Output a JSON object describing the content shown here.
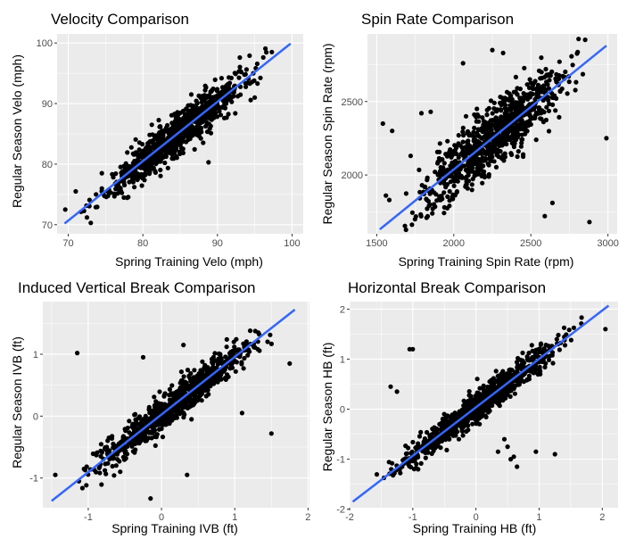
{
  "chart_data": [
    {
      "type": "scatter",
      "title": "Velocity Comparison",
      "xlabel": "Spring Training Velo (mph)",
      "ylabel": "Regular Season Velo (mph)",
      "xlim": [
        68.5,
        101.5
      ],
      "ylim": [
        68.5,
        101.5
      ],
      "xticks": [
        70,
        80,
        90,
        100
      ],
      "yticks": [
        70,
        80,
        90,
        100
      ],
      "fit_line": {
        "x": [
          69.5,
          99.8
        ],
        "y": [
          70.2,
          99.9
        ]
      },
      "cloud": {
        "x_range": [
          69.5,
          99.8
        ],
        "slope": 0.98,
        "intercept": 2.1,
        "spread": 1.6
      },
      "outliers": [
        {
          "x": 69.6,
          "y": 72.5
        },
        {
          "x": 71.0,
          "y": 75.5
        },
        {
          "x": 72.5,
          "y": 71.2
        },
        {
          "x": 81.2,
          "y": 86.5
        },
        {
          "x": 88.8,
          "y": 80.3
        },
        {
          "x": 86.5,
          "y": 91.5
        },
        {
          "x": 74.5,
          "y": 78.5
        },
        {
          "x": 95.0,
          "y": 91.0
        }
      ],
      "colors": {
        "points": "#000000",
        "fit": "#3366ff",
        "panel": "#ebebeb"
      },
      "grid": true,
      "legend": "none"
    },
    {
      "type": "scatter",
      "title": "Spin Rate Comparison",
      "xlabel": "Spring Training Spin Rate (rpm)",
      "ylabel": "Regular Season Spin Rate (rpm)",
      "xlim": [
        1440,
        3060
      ],
      "ylim": [
        1600,
        2960
      ],
      "xticks": [
        1500,
        2000,
        2500,
        3000
      ],
      "yticks": [
        2000,
        2500
      ],
      "fit_line": {
        "x": [
          1520,
          2990
        ],
        "y": [
          1630,
          2880
        ]
      },
      "cloud": {
        "x_range": [
          1520,
          2990
        ],
        "slope": 0.85,
        "intercept": 340,
        "spread": 110
      },
      "outliers": [
        {
          "x": 1540,
          "y": 2350
        },
        {
          "x": 1600,
          "y": 2300
        },
        {
          "x": 1790,
          "y": 2420
        },
        {
          "x": 1850,
          "y": 2430
        },
        {
          "x": 2060,
          "y": 2760
        },
        {
          "x": 2150,
          "y": 2450
        },
        {
          "x": 2250,
          "y": 2850
        },
        {
          "x": 2320,
          "y": 2830
        },
        {
          "x": 2590,
          "y": 1720
        },
        {
          "x": 2640,
          "y": 1810
        },
        {
          "x": 2880,
          "y": 1680
        },
        {
          "x": 2990,
          "y": 2250
        },
        {
          "x": 1560,
          "y": 1860
        },
        {
          "x": 1720,
          "y": 2130
        },
        {
          "x": 2450,
          "y": 2140
        }
      ],
      "colors": {
        "points": "#000000",
        "fit": "#3366ff",
        "panel": "#ebebeb"
      },
      "grid": true,
      "legend": "none"
    },
    {
      "type": "scatter",
      "title": "Induced Vertical Break Comparison",
      "xlabel": "Spring Training IVB (ft)",
      "ylabel": "Regular Season IVB (ft)",
      "xlim": [
        -1.62,
        2.02
      ],
      "ylim": [
        -1.48,
        1.85
      ],
      "xticks": [
        -1,
        0,
        1,
        2
      ],
      "yticks": [
        -1,
        0,
        1
      ],
      "fit_line": {
        "x": [
          -1.5,
          1.82
        ],
        "y": [
          -1.37,
          1.72
        ]
      },
      "cloud": {
        "x_range": [
          -1.5,
          1.82
        ],
        "slope": 0.93,
        "intercept": 0.02,
        "spread": 0.14
      },
      "outliers": [
        {
          "x": -1.15,
          "y": 1.02
        },
        {
          "x": -0.25,
          "y": 0.95
        },
        {
          "x": 0.3,
          "y": 1.15
        },
        {
          "x": 1.1,
          "y": 0.05
        },
        {
          "x": 1.5,
          "y": -0.28
        },
        {
          "x": 0.35,
          "y": -0.95
        },
        {
          "x": -0.15,
          "y": -1.33
        },
        {
          "x": 1.75,
          "y": 0.85
        },
        {
          "x": -1.45,
          "y": -0.95
        }
      ],
      "colors": {
        "points": "#000000",
        "fit": "#3366ff",
        "panel": "#ebebeb"
      },
      "grid": true,
      "legend": "none"
    },
    {
      "type": "scatter",
      "title": "Horizontal Break Comparison",
      "xlabel": "Spring Training HB (ft)",
      "ylabel": "Regular Season HB (ft)",
      "xlim": [
        -2.0,
        2.25
      ],
      "ylim": [
        -1.97,
        2.15
      ],
      "xticks": [
        -2,
        -1,
        0,
        1,
        2
      ],
      "yticks": [
        -2,
        -1,
        0,
        1,
        2
      ],
      "fit_line": {
        "x": [
          -1.95,
          2.1
        ],
        "y": [
          -1.85,
          2.07
        ]
      },
      "cloud": {
        "x_range": [
          -1.9,
          1.95
        ],
        "slope": 0.96,
        "intercept": 0.03,
        "spread": 0.15
      },
      "outliers": [
        {
          "x": -1.35,
          "y": 0.45
        },
        {
          "x": -1.25,
          "y": 0.35
        },
        {
          "x": -1.05,
          "y": 1.2
        },
        {
          "x": -1.0,
          "y": 1.2
        },
        {
          "x": 0.45,
          "y": -0.6
        },
        {
          "x": 0.5,
          "y": -0.75
        },
        {
          "x": 0.55,
          "y": -1.0
        },
        {
          "x": 0.6,
          "y": -0.95
        },
        {
          "x": 0.65,
          "y": -1.15
        },
        {
          "x": 0.95,
          "y": -0.85
        },
        {
          "x": 1.25,
          "y": -0.9
        },
        {
          "x": 2.05,
          "y": 1.6
        },
        {
          "x": 0.35,
          "y": -0.85
        }
      ],
      "colors": {
        "points": "#000000",
        "fit": "#3366ff",
        "panel": "#ebebeb"
      },
      "grid": true,
      "legend": "none"
    }
  ]
}
